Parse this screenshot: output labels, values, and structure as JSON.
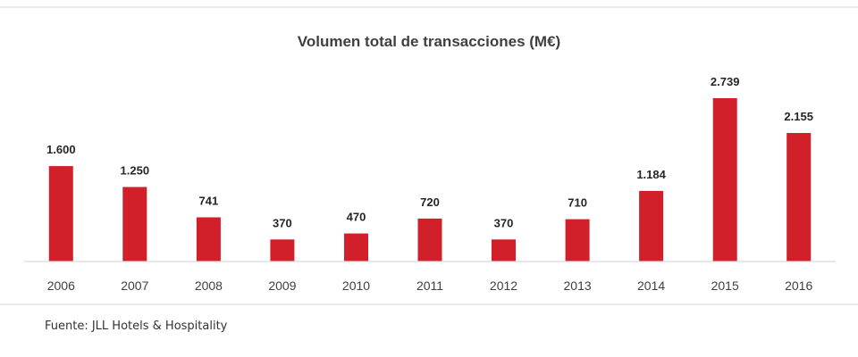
{
  "colors": {
    "bar": "#d2202a",
    "axis": "#d9d9d9",
    "text": "#404040"
  },
  "footer": {
    "source": "Fuente: JLL Hotels & Hospitality"
  },
  "chart_data": {
    "type": "bar",
    "title": "Volumen total de transacciones (M€)",
    "xlabel": "",
    "ylabel": "",
    "categories": [
      "2006",
      "2007",
      "2008",
      "2009",
      "2010",
      "2011",
      "2012",
      "2013",
      "2014",
      "2015",
      "2016"
    ],
    "values": [
      1600,
      1250,
      741,
      370,
      470,
      720,
      370,
      710,
      1184,
      2739,
      2155
    ],
    "data_labels": [
      "1.600",
      "1.250",
      "741",
      "370",
      "470",
      "720",
      "370",
      "710",
      "1.184",
      "2.739",
      "2.155"
    ],
    "ylim": [
      0,
      2739
    ],
    "grid": false,
    "legend": "none"
  }
}
